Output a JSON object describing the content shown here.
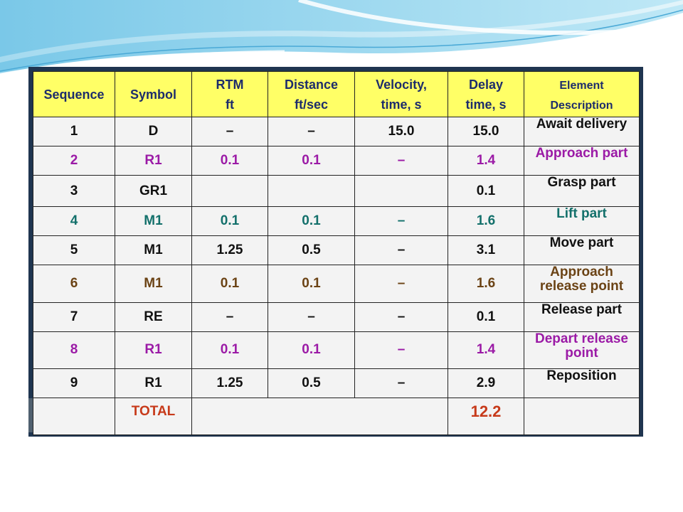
{
  "table": {
    "headers": [
      {
        "line1": "Sequence",
        "line2": ""
      },
      {
        "line1": "Symbol",
        "line2": ""
      },
      {
        "line1": "RTM",
        "line2": "ft"
      },
      {
        "line1": "Distance",
        "line2": "ft/sec"
      },
      {
        "line1": "Velocity,",
        "line2": "time, s"
      },
      {
        "line1": "Delay",
        "line2": "time, s"
      },
      {
        "line1": "Element",
        "line2": "Description"
      }
    ],
    "rows": [
      {
        "seq": "1",
        "symbol": "D",
        "rtm": "–",
        "distance": "–",
        "velocity": "15.0",
        "delay": "15.0",
        "desc1": "Await delivery",
        "desc2": "",
        "color": "#111111"
      },
      {
        "seq": "2",
        "symbol": "R1",
        "rtm": "0.1",
        "distance": "0.1",
        "velocity": "–",
        "delay": "1.4",
        "desc1": "Approach part",
        "desc2": "",
        "color": "#9b1aa6"
      },
      {
        "seq": "3",
        "symbol": "GR1",
        "rtm": "",
        "distance": "",
        "velocity": "",
        "delay": "0.1",
        "desc1": "Grasp part",
        "desc2": "",
        "color": "#111111"
      },
      {
        "seq": "4",
        "symbol": "M1",
        "rtm": "0.1",
        "distance": "0.1",
        "velocity": "–",
        "delay": "1.6",
        "desc1": "Lift part",
        "desc2": "",
        "color": "#13706b"
      },
      {
        "seq": "5",
        "symbol": "M1",
        "rtm": "1.25",
        "distance": "0.5",
        "velocity": "–",
        "delay": "3.1",
        "desc1": "Move part",
        "desc2": "",
        "color": "#111111"
      },
      {
        "seq": "6",
        "symbol": "M1",
        "rtm": "0.1",
        "distance": "0.1",
        "velocity": "–",
        "delay": "1.6",
        "desc1": "Approach",
        "desc2": "release point",
        "color": "#6b4315"
      },
      {
        "seq": "7",
        "symbol": "RE",
        "rtm": "–",
        "distance": "–",
        "velocity": "–",
        "delay": "0.1",
        "desc1": "Release part",
        "desc2": "",
        "color": "#111111"
      },
      {
        "seq": "8",
        "symbol": "R1",
        "rtm": "0.1",
        "distance": "0.1",
        "velocity": "–",
        "delay": "1.4",
        "desc1": "Depart release",
        "desc2": "point",
        "color": "#9b1aa6"
      },
      {
        "seq": "9",
        "symbol": "R1",
        "rtm": "1.25",
        "distance": "0.5",
        "velocity": "–",
        "delay": "2.9",
        "desc1": "Reposition",
        "desc2": "",
        "color": "#111111"
      }
    ],
    "total": {
      "label": "TOTAL",
      "value": "12.2",
      "color": "#c73a1a"
    }
  },
  "colors": {
    "header_bg": "#ffff66",
    "header_text": "#1d2c6b",
    "cell_bg": "#f3f3f3",
    "frame": "#1f3550"
  }
}
